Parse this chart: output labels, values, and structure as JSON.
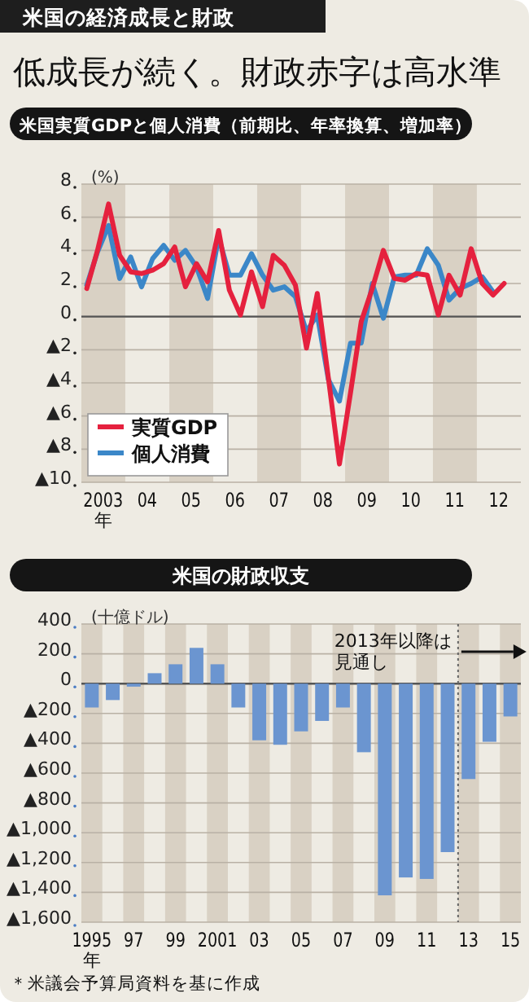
{
  "chart_data": [
    {
      "type": "other",
      "title": "米国の経済成長と財政",
      "subtitle": "低成長が続く。財政赤字は高水準"
    },
    {
      "type": "line",
      "title": "米国実質GDPと個人消費（前期比、年率換算、増加率）",
      "ylabel": "(%)",
      "xlabel": "年",
      "x": [
        "2003-02-15",
        "2003-05-15",
        "2003-08-15",
        "2003-11-15",
        "2004-02-15",
        "2004-05-15",
        "2004-08-15",
        "2004-11-15",
        "2005-02-15",
        "2005-05-15",
        "2005-08-15",
        "2005-11-15",
        "2006-02-15",
        "2006-05-15",
        "2006-08-15",
        "2006-11-15",
        "2007-02-15",
        "2007-05-15",
        "2007-08-15",
        "2007-11-15",
        "2008-02-15",
        "2008-05-15",
        "2008-08-15",
        "2008-11-15",
        "2009-02-15",
        "2009-05-15",
        "2009-08-15",
        "2009-11-15",
        "2010-02-15",
        "2010-05-15",
        "2010-08-15",
        "2010-11-15",
        "2011-02-15",
        "2011-05-15",
        "2011-08-15",
        "2011-11-15",
        "2012-02-15",
        "2012-05-15",
        "2012-08-15"
      ],
      "series": [
        {
          "name": "実質GDP",
          "color": "#e5213e",
          "values": [
            1.7,
            4.0,
            6.8,
            3.7,
            2.7,
            2.6,
            2.8,
            3.2,
            4.2,
            1.8,
            3.2,
            2.1,
            5.2,
            1.6,
            0.1,
            2.7,
            0.6,
            3.7,
            3.1,
            1.9,
            -1.9,
            1.4,
            -3.7,
            -8.9,
            -4.6,
            -0.3,
            1.7,
            4.0,
            2.3,
            2.2,
            2.6,
            2.5,
            0.1,
            2.5,
            1.3,
            4.1,
            2.0,
            1.3,
            2.0
          ]
        },
        {
          "name": "個人消費",
          "color": "#3b87c8",
          "values": [
            1.9,
            3.9,
            5.5,
            2.3,
            3.6,
            1.8,
            3.5,
            4.3,
            3.4,
            4.0,
            3.0,
            1.1,
            4.8,
            2.5,
            2.5,
            3.8,
            2.5,
            1.6,
            1.8,
            1.2,
            -0.9,
            0.1,
            -3.8,
            -5.1,
            -1.6,
            -1.6,
            2.0,
            -0.1,
            2.4,
            2.5,
            2.5,
            4.1,
            3.1,
            1.0,
            1.7,
            2.0,
            2.4,
            1.5,
            null
          ]
        }
      ],
      "xlim": [
        "2003-01-01",
        "2013-01-01"
      ],
      "xticks": [
        {
          "value": "2003-07-01",
          "label": "2003"
        },
        {
          "value": "2004-07-01",
          "label": "04"
        },
        {
          "value": "2005-07-01",
          "label": "05"
        },
        {
          "value": "2006-07-01",
          "label": "06"
        },
        {
          "value": "2007-07-01",
          "label": "07"
        },
        {
          "value": "2008-07-01",
          "label": "08"
        },
        {
          "value": "2009-07-01",
          "label": "09"
        },
        {
          "value": "2010-07-01",
          "label": "10"
        },
        {
          "value": "2011-07-01",
          "label": "11"
        },
        {
          "value": "2012-07-01",
          "label": "12"
        }
      ],
      "ylim": [
        -10,
        8
      ],
      "yticks": [
        8,
        6,
        4,
        2,
        0,
        {
          "value": -2,
          "label": "▲2"
        },
        {
          "value": -4,
          "label": "▲4"
        },
        {
          "value": -6,
          "label": "▲6"
        },
        {
          "value": -8,
          "label": "▲8"
        },
        {
          "value": -10,
          "label": "▲10"
        }
      ],
      "bands": [
        {
          "axis": "x",
          "from": "2003-01-01",
          "to": "2004-01-01",
          "color": "#d9d1c4"
        },
        {
          "axis": "x",
          "from": "2005-01-01",
          "to": "2006-01-01",
          "color": "#d9d1c4"
        },
        {
          "axis": "x",
          "from": "2007-01-01",
          "to": "2008-01-01",
          "color": "#d9d1c4"
        },
        {
          "axis": "x",
          "from": "2009-01-01",
          "to": "2010-01-01",
          "color": "#d9d1c4"
        },
        {
          "axis": "x",
          "from": "2011-01-01",
          "to": "2012-01-01",
          "color": "#d9d1c4"
        }
      ],
      "grid": "y",
      "legend": "bottom left"
    },
    {
      "type": "bar",
      "title": "米国の財政収支",
      "ylabel": "(十億ドル)",
      "xlabel": "年",
      "categories": [
        "1995",
        null,
        "97",
        null,
        "99",
        null,
        "2001",
        null,
        "03",
        null,
        "05",
        null,
        "07",
        null,
        "09",
        null,
        "11",
        null,
        "13",
        null,
        "15"
      ],
      "values": [
        -160,
        -110,
        -20,
        70,
        130,
        240,
        130,
        -160,
        -380,
        -410,
        -320,
        -250,
        -160,
        -460,
        -1420,
        -1300,
        -1310,
        -1130,
        -640,
        -390,
        -220
      ],
      "color": "#6b95d0",
      "ylim": [
        -1600,
        400
      ],
      "yticks": [
        400,
        200,
        0,
        {
          "value": -200,
          "label": "▲200"
        },
        {
          "value": -400,
          "label": "▲400"
        },
        {
          "value": -600,
          "label": "▲600"
        },
        {
          "value": -800,
          "label": "▲800"
        },
        {
          "value": -1000,
          "label": "▲1,000"
        },
        {
          "value": -1200,
          "label": "▲1,200"
        },
        {
          "value": -1400,
          "label": "▲1,400"
        },
        {
          "value": -1600,
          "label": "▲1,600"
        }
      ],
      "bands": [
        {
          "axis": "x",
          "from": "1995",
          "to": "1995",
          "color": "#d9d1c4"
        },
        {
          "axis": "x",
          "from": "97",
          "to": "97",
          "color": "#d9d1c4"
        },
        {
          "axis": "x",
          "from": "99",
          "to": "99",
          "color": "#d9d1c4"
        },
        {
          "axis": "x",
          "from": "2001",
          "to": "2001",
          "color": "#d9d1c4"
        },
        {
          "axis": "x",
          "from": "03",
          "to": "03",
          "color": "#d9d1c4"
        },
        {
          "axis": "x",
          "from": "05",
          "to": "05",
          "color": "#d9d1c4"
        },
        {
          "axis": "x",
          "from": "07",
          "to": "07",
          "color": "#d9d1c4"
        },
        {
          "axis": "x",
          "from": "09",
          "to": "09",
          "color": "#d9d1c4"
        },
        {
          "axis": "x",
          "from": "11",
          "to": "11",
          "color": "#d9d1c4"
        },
        {
          "axis": "x",
          "from": "13",
          "to": "13",
          "color": "#d9d1c4"
        },
        {
          "axis": "x",
          "from": "15",
          "to": "15",
          "color": "#d9d1c4"
        }
      ],
      "ref_lines": [
        {
          "axis": "x",
          "value": "13",
          "label": "2013年以降は見通し",
          "line_style": "dotted",
          "color": "#666666"
        }
      ],
      "grid": "y",
      "annotations": [
        "＊米議会予算局資料を基に作成"
      ]
    }
  ]
}
